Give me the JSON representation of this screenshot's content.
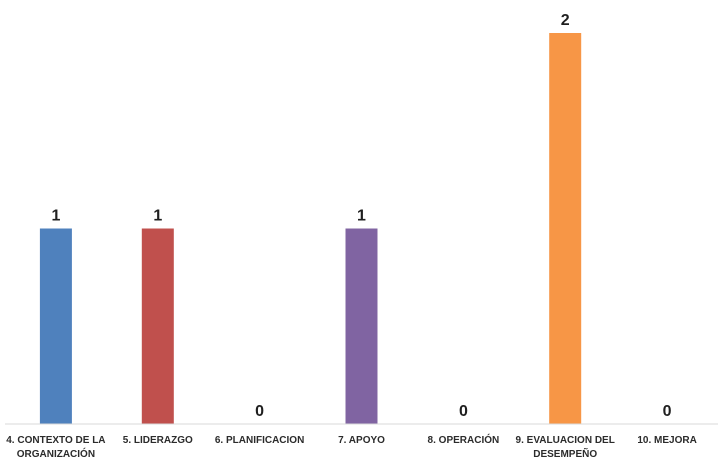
{
  "chart_data": {
    "type": "bar",
    "title": "",
    "xlabel": "",
    "ylabel": "",
    "categories": [
      [
        "4. CONTEXTO DE LA",
        "ORGANIZACIÓN"
      ],
      [
        "5. LIDERAZGO"
      ],
      [
        "6. PLANIFICACION"
      ],
      [
        "7. APOYO"
      ],
      [
        "8. OPERACIÓN"
      ],
      [
        "9. EVALUACION DEL",
        "DESEMPEÑO"
      ],
      [
        "10. MEJORA"
      ]
    ],
    "values": [
      1,
      1,
      0,
      1,
      0,
      2,
      0
    ],
    "ylim": [
      0,
      2
    ],
    "grid": false,
    "legend": "none",
    "data_labels": true,
    "colors": [
      "#4f81bd",
      "#c0504d",
      "#9bbb59",
      "#8064a2",
      "#4bacc6",
      "#f79646",
      "#2c4d75"
    ]
  }
}
